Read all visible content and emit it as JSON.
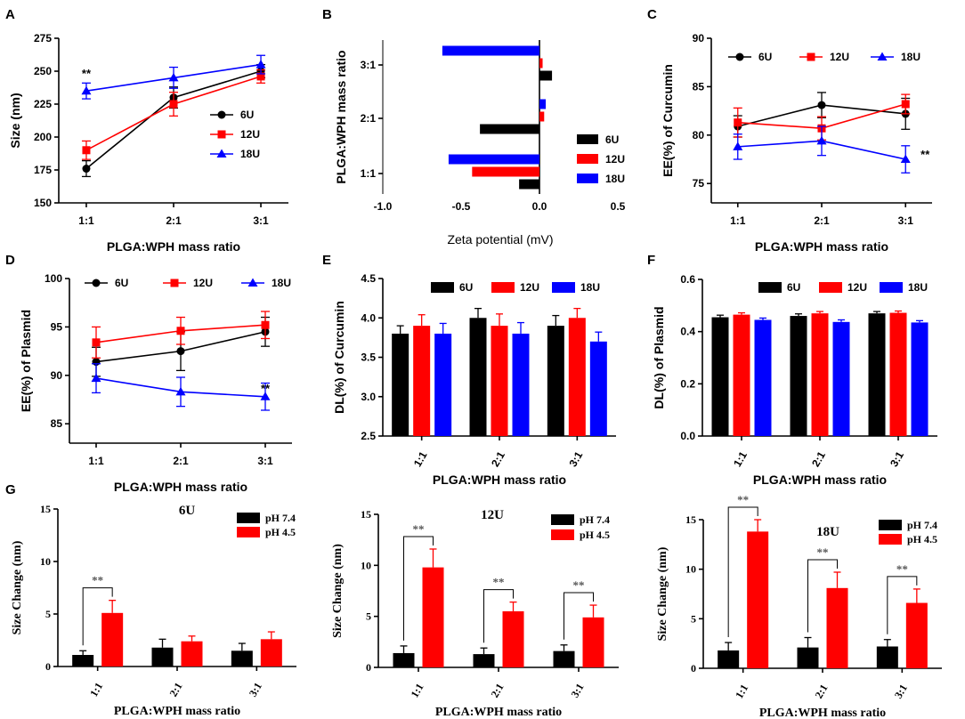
{
  "figure": {
    "panel_labels": [
      "A",
      "B",
      "C",
      "D",
      "E",
      "F",
      "G"
    ]
  },
  "colors": {
    "6U": "#000000",
    "12U": "#ff0000",
    "18U": "#0000ff",
    "pH 7.4": "#000000",
    "pH 4.5": "#ff0000"
  },
  "chart_data": [
    {
      "id": "A",
      "type": "line",
      "categories": [
        "1:1",
        "2:1",
        "3:1"
      ],
      "ylabel": "Size (nm)",
      "xlabel": "PLGA:WPH mass ratio",
      "ylim": [
        150,
        275
      ],
      "yticks": [
        "150",
        "175",
        "200",
        "225",
        "250",
        "275"
      ],
      "series": [
        {
          "name": "6U",
          "values": [
            176,
            230,
            250
          ],
          "errors": [
            6,
            8,
            5
          ]
        },
        {
          "name": "12U",
          "values": [
            190,
            225,
            246
          ],
          "errors": [
            7,
            9,
            5
          ]
        },
        {
          "name": "18U",
          "values": [
            235,
            245,
            255
          ],
          "errors": [
            6,
            8,
            7
          ]
        }
      ],
      "annotations": [
        {
          "text": "**",
          "category": "1:1"
        }
      ],
      "legend": "center-right"
    },
    {
      "id": "B",
      "type": "bar",
      "orientation": "horizontal",
      "categories": [
        "1:1",
        "2:1",
        "3:1"
      ],
      "ylabel": "PLGA:WPH mass ratio",
      "xlabel": "Zeta potential (mV)",
      "xlim": [
        -1.0,
        0.5
      ],
      "xticks": [
        "-1.0",
        "-0.5",
        "0.0",
        "0.5"
      ],
      "series": [
        {
          "name": "6U",
          "values": [
            -0.13,
            -0.38,
            0.08
          ]
        },
        {
          "name": "12U",
          "values": [
            -0.43,
            0.03,
            0.02
          ]
        },
        {
          "name": "18U",
          "values": [
            -0.58,
            0.04,
            -0.62
          ]
        }
      ],
      "legend": "lower-right"
    },
    {
      "id": "C",
      "type": "line",
      "categories": [
        "1:1",
        "2:1",
        "3:1"
      ],
      "ylabel": "EE(%) of Curcumin",
      "xlabel": "PLGA:WPH mass ratio",
      "ylim": [
        73,
        90
      ],
      "yticks": [
        "75",
        "80",
        "85",
        "90"
      ],
      "series": [
        {
          "name": "6U",
          "values": [
            80.9,
            83.1,
            82.2
          ],
          "errors": [
            1.1,
            1.3,
            1.6
          ]
        },
        {
          "name": "12U",
          "values": [
            81.3,
            80.7,
            83.2
          ],
          "errors": [
            1.5,
            1.2,
            1.0
          ]
        },
        {
          "name": "18U",
          "values": [
            78.8,
            79.4,
            77.5
          ],
          "errors": [
            1.3,
            1.5,
            1.4
          ]
        }
      ],
      "annotations": [
        {
          "text": "**",
          "category": "3:1"
        }
      ],
      "legend": "top"
    },
    {
      "id": "D",
      "type": "line",
      "categories": [
        "1:1",
        "2:1",
        "3:1"
      ],
      "ylabel": "EE(%) of Plasmid",
      "xlabel": "PLGA:WPH mass ratio",
      "ylim": [
        83,
        100
      ],
      "yticks": [
        "85",
        "90",
        "95",
        "100"
      ],
      "series": [
        {
          "name": "6U",
          "values": [
            91.4,
            92.5,
            94.5
          ],
          "errors": [
            1.5,
            2.0,
            1.5
          ]
        },
        {
          "name": "12U",
          "values": [
            93.4,
            94.6,
            95.2
          ],
          "errors": [
            1.6,
            1.4,
            1.4
          ]
        },
        {
          "name": "18U",
          "values": [
            89.7,
            88.3,
            87.8
          ],
          "errors": [
            1.5,
            1.5,
            1.4
          ]
        }
      ],
      "annotations": [
        {
          "text": "**",
          "category": "3:1"
        }
      ],
      "legend": "top"
    },
    {
      "id": "E",
      "type": "bar",
      "categories": [
        "1:1",
        "2:1",
        "3:1"
      ],
      "ylabel": "DL(%) of Curcumin",
      "xlabel": "PLGA:WPH mass ratio",
      "ylim": [
        2.5,
        4.5
      ],
      "yticks": [
        "2.5",
        "3.0",
        "3.5",
        "4.0",
        "4.5"
      ],
      "series": [
        {
          "name": "6U",
          "values": [
            3.8,
            4.0,
            3.9
          ],
          "errors": [
            0.1,
            0.12,
            0.13
          ]
        },
        {
          "name": "12U",
          "values": [
            3.9,
            3.9,
            4.0
          ],
          "errors": [
            0.14,
            0.15,
            0.12
          ]
        },
        {
          "name": "18U",
          "values": [
            3.8,
            3.8,
            3.7
          ],
          "errors": [
            0.13,
            0.14,
            0.12
          ]
        }
      ],
      "legend": "top"
    },
    {
      "id": "F",
      "type": "bar",
      "categories": [
        "1:1",
        "2:1",
        "3:1"
      ],
      "ylabel": "DL(%) of Plasmid",
      "xlabel": "PLGA:WPH mass ratio",
      "ylim": [
        0.0,
        0.6
      ],
      "yticks": [
        "0.0",
        "0.2",
        "0.4",
        "0.6"
      ],
      "series": [
        {
          "name": "6U",
          "values": [
            0.455,
            0.46,
            0.47
          ],
          "errors": [
            0.008,
            0.008,
            0.007
          ]
        },
        {
          "name": "12U",
          "values": [
            0.465,
            0.47,
            0.472
          ],
          "errors": [
            0.007,
            0.007,
            0.007
          ]
        },
        {
          "name": "18U",
          "values": [
            0.445,
            0.437,
            0.435
          ],
          "errors": [
            0.007,
            0.008,
            0.007
          ]
        }
      ],
      "legend": "top"
    },
    {
      "id": "G1",
      "type": "bar",
      "title": "6U",
      "categories": [
        "1:1",
        "2:1",
        "3:1"
      ],
      "ylabel": "Size Change (nm)",
      "xlabel": "PLGA:WPH mass ratio",
      "ylim": [
        0,
        15
      ],
      "yticks": [
        "0",
        "5",
        "10",
        "15"
      ],
      "series": [
        {
          "name": "pH 7.4",
          "values": [
            1.1,
            1.8,
            1.5
          ],
          "errors": [
            0.4,
            0.8,
            0.7
          ]
        },
        {
          "name": "pH 4.5",
          "values": [
            5.1,
            2.4,
            2.6
          ],
          "errors": [
            1.2,
            0.5,
            0.7
          ]
        }
      ],
      "significance": [
        {
          "category": "1:1",
          "text": "**"
        }
      ],
      "legend": "top-right"
    },
    {
      "id": "G2",
      "type": "bar",
      "title": "12U",
      "categories": [
        "1:1",
        "2:1",
        "3:1"
      ],
      "ylabel": "Size Change (nm)",
      "xlabel": "PLGA:WPH mass ratio",
      "ylim": [
        0,
        15
      ],
      "yticks": [
        "0",
        "5",
        "10",
        "15"
      ],
      "series": [
        {
          "name": "pH 7.4",
          "values": [
            1.4,
            1.3,
            1.6
          ],
          "errors": [
            0.7,
            0.6,
            0.6
          ]
        },
        {
          "name": "pH 4.5",
          "values": [
            9.8,
            5.5,
            4.9
          ],
          "errors": [
            1.8,
            0.9,
            1.2
          ]
        }
      ],
      "significance": [
        {
          "category": "1:1",
          "text": "**"
        },
        {
          "category": "2:1",
          "text": "**"
        },
        {
          "category": "3:1",
          "text": "**"
        }
      ],
      "legend": "top-right"
    },
    {
      "id": "G3",
      "type": "bar",
      "title": "18U",
      "categories": [
        "1:1",
        "2:1",
        "3:1"
      ],
      "ylabel": "Size Change (nm)",
      "xlabel": "PLGA:WPH mass ratio",
      "ylim": [
        0,
        15
      ],
      "yticks": [
        "0",
        "5",
        "10",
        "15"
      ],
      "series": [
        {
          "name": "pH 7.4",
          "values": [
            1.8,
            2.1,
            2.2
          ],
          "errors": [
            0.8,
            1.0,
            0.7
          ]
        },
        {
          "name": "pH 4.5",
          "values": [
            13.8,
            8.1,
            6.6
          ],
          "errors": [
            1.2,
            1.6,
            1.4
          ]
        }
      ],
      "significance": [
        {
          "category": "1:1",
          "text": "**"
        },
        {
          "category": "2:1",
          "text": "**"
        },
        {
          "category": "3:1",
          "text": "**"
        }
      ],
      "legend": "top-right"
    }
  ]
}
